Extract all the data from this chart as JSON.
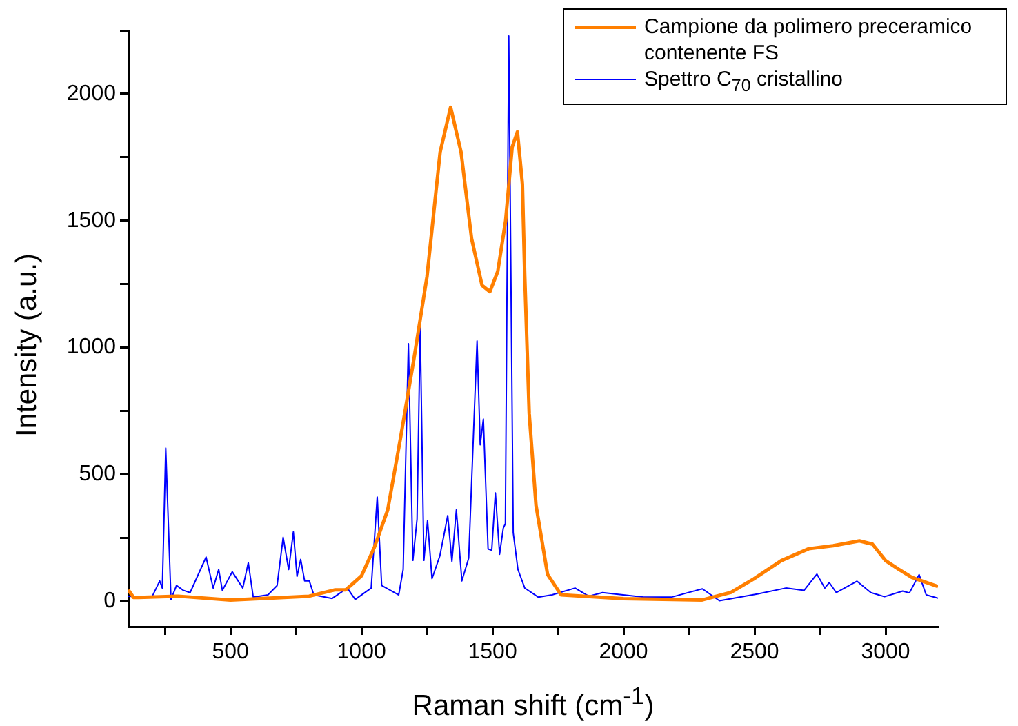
{
  "chart_data": {
    "type": "line",
    "xlabel": "Raman shift (cm$^{-1}$)",
    "ylabel": "Intensity (a.u.)",
    "xlim": [
      110,
      3200
    ],
    "ylim": [
      -100,
      2250
    ],
    "xticks": [
      {
        "value": 250,
        "label": null
      },
      500,
      {
        "value": 750,
        "label": null
      },
      1000,
      {
        "value": 1250,
        "label": null
      },
      1500,
      {
        "value": 1750,
        "label": null
      },
      2000,
      {
        "value": 2250,
        "label": null
      },
      2500,
      {
        "value": 2750,
        "label": null
      },
      3000
    ],
    "yticks": [
      0,
      {
        "value": 250,
        "label": null
      },
      500,
      {
        "value": 750,
        "label": null
      },
      1000,
      {
        "value": 1250,
        "label": null
      },
      1500,
      {
        "value": 1750,
        "label": null
      },
      2000,
      {
        "value": 2250,
        "label": null
      }
    ],
    "grid": false,
    "legend": "top right",
    "marker": "none",
    "line_style": "solid",
    "series": [
      {
        "name": "Campione da polimero preceramico contenente FS",
        "color": "#ff7f00",
        "x": [
          110,
          130,
          150,
          300,
          500,
          800,
          900,
          940,
          1000,
          1050,
          1100,
          1150,
          1200,
          1250,
          1300,
          1340,
          1380,
          1420,
          1460,
          1490,
          1520,
          1550,
          1575,
          1595,
          1614,
          1623,
          1640,
          1666,
          1710,
          1762,
          2000,
          2300,
          2410,
          2497,
          2602,
          2707,
          2800,
          2900,
          2950,
          3000,
          3050,
          3100,
          3200
        ],
        "values": [
          45,
          15,
          15,
          20,
          5,
          20,
          45,
          45,
          100,
          215,
          360,
          650,
          955,
          1280,
          1770,
          1947,
          1770,
          1430,
          1245,
          1220,
          1300,
          1500,
          1790,
          1850,
          1645,
          1282,
          740,
          378,
          106,
          25,
          10,
          5,
          35,
          88,
          160,
          207,
          219,
          238,
          225,
          160,
          126,
          94,
          58
        ]
      },
      {
        "name": "Spettro C$_{70}$ cristallino",
        "color": "#0000ff",
        "x": [
          110,
          200,
          230,
          240,
          253,
          273,
          294,
          320,
          346,
          407,
          434,
          455,
          469,
          507,
          547,
          568,
          587,
          643,
          678,
          701,
          722,
          740,
          754,
          768,
          783,
          801,
          818,
          888,
          946,
          976,
          1037,
          1060,
          1077,
          1142,
          1159,
          1179,
          1196,
          1212,
          1224,
          1238,
          1252,
          1269,
          1299,
          1311,
          1329,
          1345,
          1362,
          1383,
          1409,
          1441,
          1453,
          1465,
          1483,
          1497,
          1511,
          1527,
          1541,
          1549,
          1562,
          1579,
          1597,
          1623,
          1675,
          1727,
          1815,
          1867,
          1920,
          2077,
          2182,
          2301,
          2366,
          2514,
          2619,
          2689,
          2738,
          2768,
          2785,
          2812,
          2891,
          2944,
          2996,
          3065,
          3091,
          3128,
          3155,
          3200
        ],
        "values": [
          20,
          16,
          80,
          52,
          604,
          7,
          62,
          43,
          34,
          174,
          52,
          125,
          43,
          116,
          52,
          152,
          16,
          25,
          62,
          252,
          125,
          273,
          98,
          165,
          80,
          80,
          25,
          11,
          52,
          7,
          52,
          411,
          62,
          25,
          125,
          1015,
          161,
          324,
          1079,
          161,
          318,
          89,
          179,
          242,
          338,
          157,
          360,
          80,
          170,
          1026,
          617,
          718,
          206,
          201,
          427,
          185,
          288,
          306,
          2228,
          270,
          125,
          52,
          16,
          25,
          52,
          20,
          34,
          16,
          16,
          49,
          2,
          29,
          52,
          43,
          107,
          52,
          74,
          34,
          79,
          34,
          18,
          40,
          33,
          105,
          25,
          12
        ]
      }
    ]
  }
}
